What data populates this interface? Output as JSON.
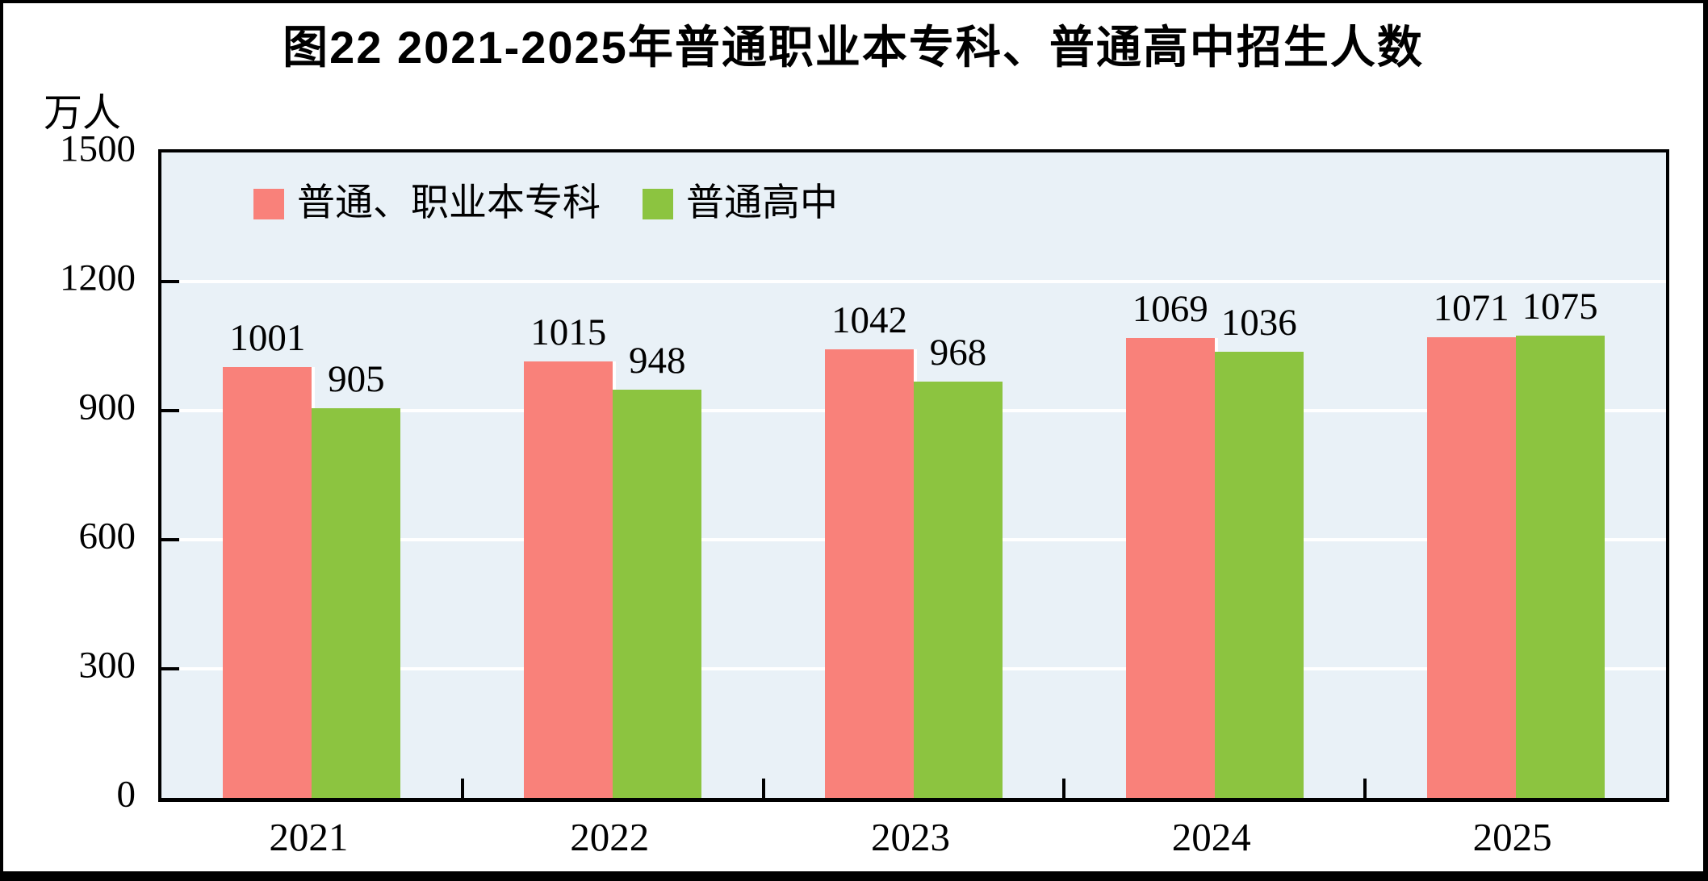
{
  "figure": {
    "title": "图22  2021-2025年普通职业本专科、普通高中招生人数",
    "unit_label": "万人"
  },
  "chart_data": {
    "type": "bar",
    "title": "图22  2021-2025年普通职业本专科、普通高中招生人数",
    "ylabel": "万人",
    "categories": [
      "2021",
      "2022",
      "2023",
      "2024",
      "2025"
    ],
    "series": [
      {
        "name": "普通、职业本专科",
        "color": "#f9817a",
        "values": [
          1001,
          1015,
          1042,
          1069,
          1071
        ]
      },
      {
        "name": "普通高中",
        "color": "#8cc440",
        "values": [
          905,
          948,
          968,
          1036,
          1075
        ]
      }
    ],
    "ylim": [
      0,
      1500
    ],
    "yticks": [
      0,
      300,
      600,
      900,
      1200,
      1500
    ],
    "grid": "horizontal",
    "grid_color": "#ffffff",
    "plot_bg": "#e9f1f7",
    "legend_position": "top-left-inside",
    "data_labels": true
  }
}
